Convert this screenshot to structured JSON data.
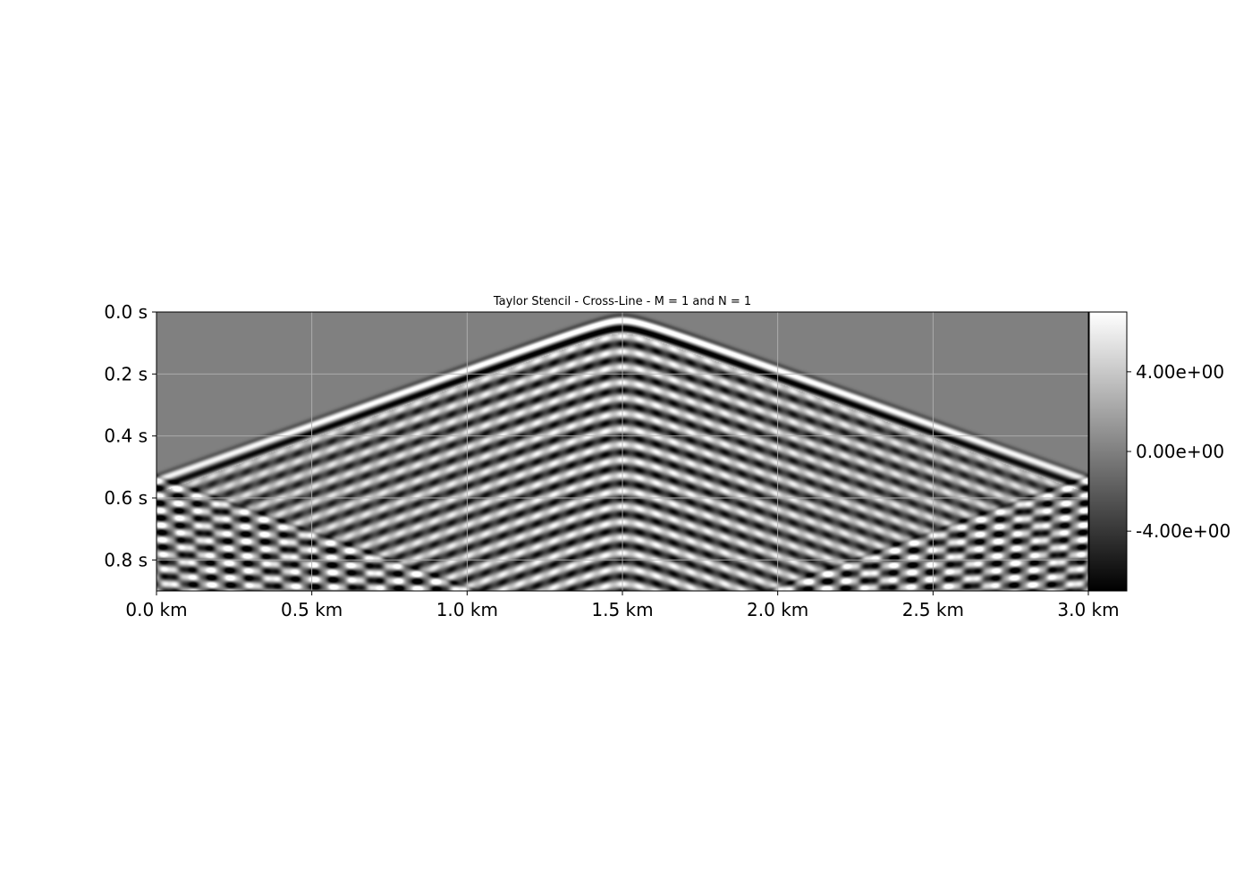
{
  "chart_data": {
    "type": "heatmap",
    "title": "Taylor Stencil - Cross-Line - M = 1 and N = 1",
    "xlabel": "",
    "ylabel": "",
    "x_ticks": [
      {
        "value": 0.0,
        "label": "0.0 km"
      },
      {
        "value": 0.5,
        "label": "0.5 km"
      },
      {
        "value": 1.0,
        "label": "1.0 km"
      },
      {
        "value": 1.5,
        "label": "1.5 km"
      },
      {
        "value": 2.0,
        "label": "2.0 km"
      },
      {
        "value": 2.5,
        "label": "2.5 km"
      },
      {
        "value": 3.0,
        "label": "3.0 km"
      }
    ],
    "y_ticks": [
      {
        "value": 0.0,
        "label": "0.0 s"
      },
      {
        "value": 0.2,
        "label": "0.2 s"
      },
      {
        "value": 0.4,
        "label": "0.4 s"
      },
      {
        "value": 0.6,
        "label": "0.6 s"
      },
      {
        "value": 0.8,
        "label": "0.8 s"
      }
    ],
    "xlim": [
      0.0,
      3.0
    ],
    "ylim": [
      0.9,
      0.0
    ],
    "grid": true,
    "colormap": "gray",
    "colormap_colors": [
      "#000000",
      "#ffffff"
    ],
    "colorbar": {
      "vmin": -7.0,
      "vmax": 7.0,
      "ticks": [
        {
          "value": 4.0,
          "label": "4.00e+00"
        },
        {
          "value": 0.0,
          "label": "0.00e+00"
        },
        {
          "value": -4.0,
          "label": "-4.00e+00"
        }
      ]
    },
    "wavefield": {
      "source_x_km": 1.5,
      "first_arrival_s": 0.02,
      "apparent_velocity_km_s": 2.8,
      "dominant_period_s": 0.05
    }
  }
}
